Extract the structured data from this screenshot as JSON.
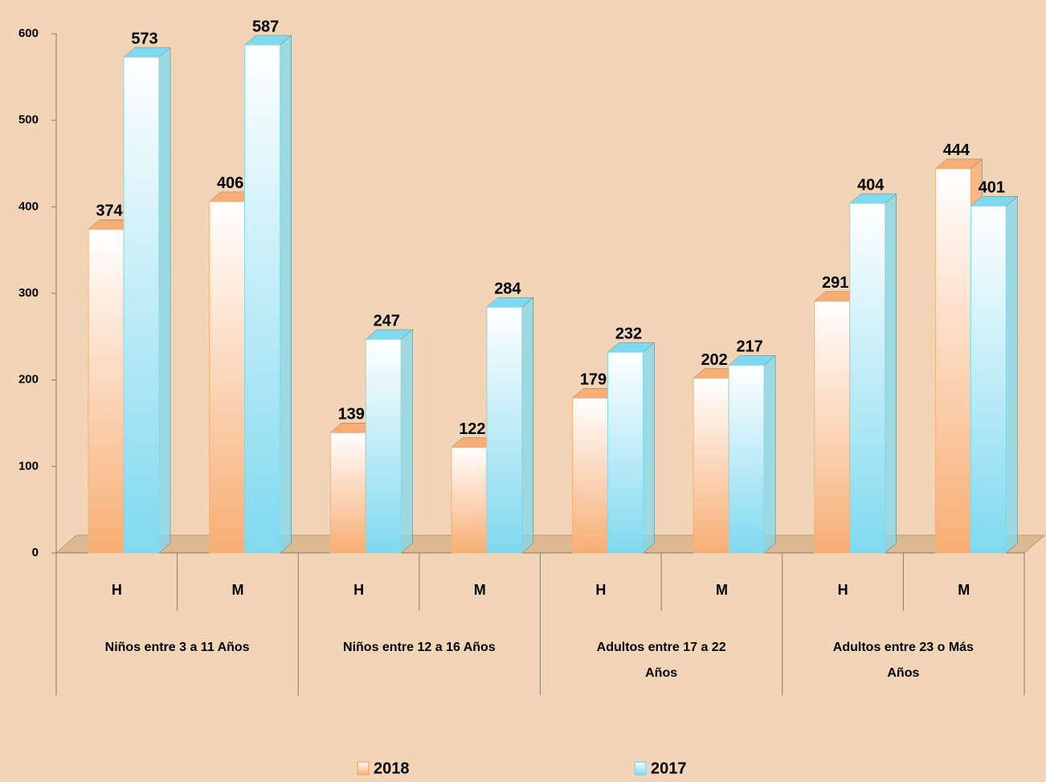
{
  "chart_data": {
    "type": "bar",
    "categories": [
      "H",
      "M",
      "H",
      "M",
      "H",
      "M",
      "H",
      "M"
    ],
    "groups": [
      "Niños entre 3 a 11 Años",
      "Niños entre 12 a 16 Años",
      "Adultos entre 17 a 22 Años",
      "Adultos entre 23 o Más Años"
    ],
    "series": [
      {
        "name": "2018",
        "color": "#f7ae74",
        "values": [
          374,
          406,
          139,
          122,
          179,
          202,
          291,
          444
        ]
      },
      {
        "name": "2017",
        "color": "#7fd9ef",
        "values": [
          573,
          587,
          247,
          284,
          232,
          217,
          404,
          401
        ]
      }
    ],
    "ylim": [
      0,
      600
    ],
    "yticks": [
      0,
      100,
      200,
      300,
      400,
      500,
      600
    ],
    "legend": "bottom"
  }
}
